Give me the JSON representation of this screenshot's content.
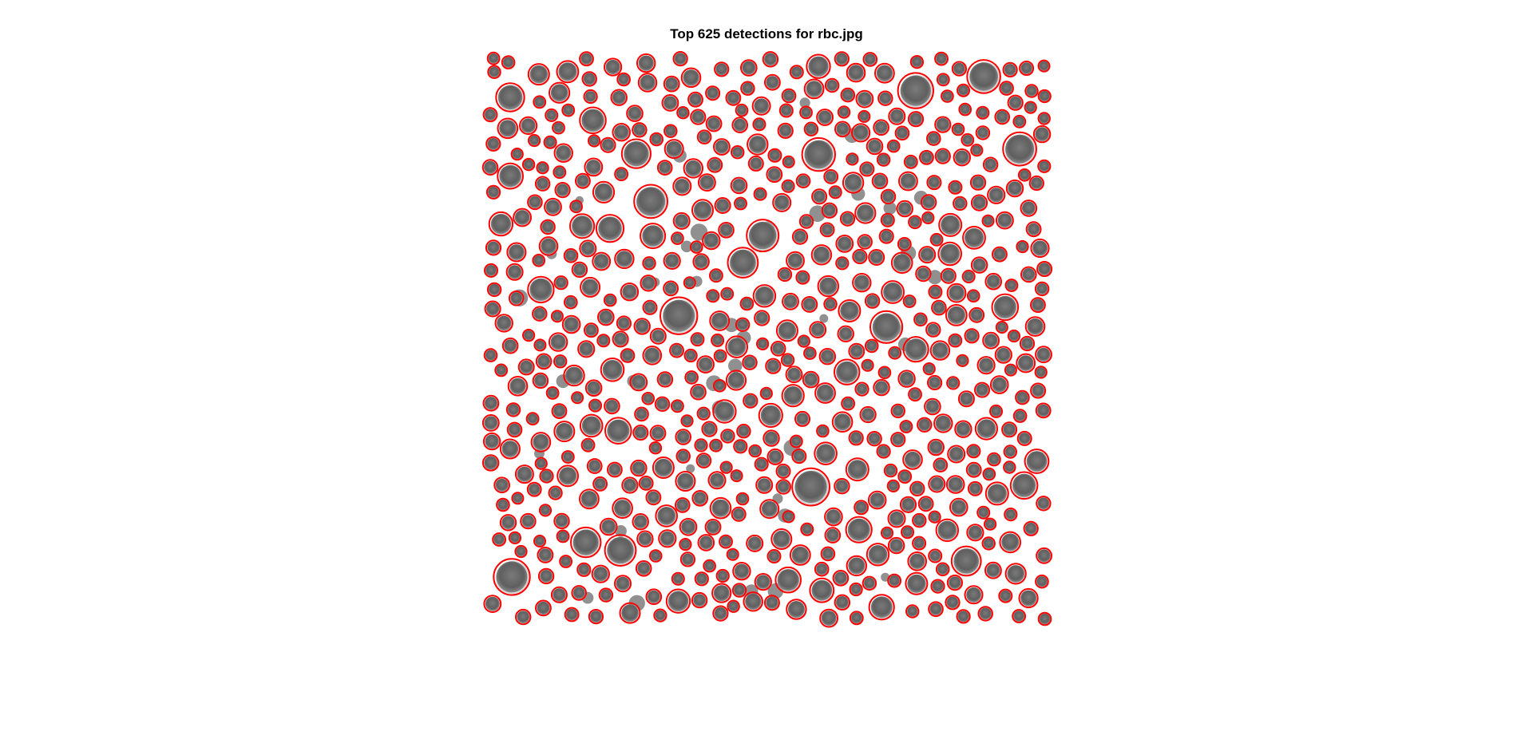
{
  "figure": {
    "title": "Top 625 detections for rbc.jpg"
  },
  "image": {
    "subject": "microscope image of red blood cells with circular detections overlaid",
    "background_color": "#ffffff",
    "cell_color": "#6b6b6b",
    "cell_halo_color": "#bdbdbd",
    "detection_color": "#ff0000",
    "detection_count": 625
  }
}
